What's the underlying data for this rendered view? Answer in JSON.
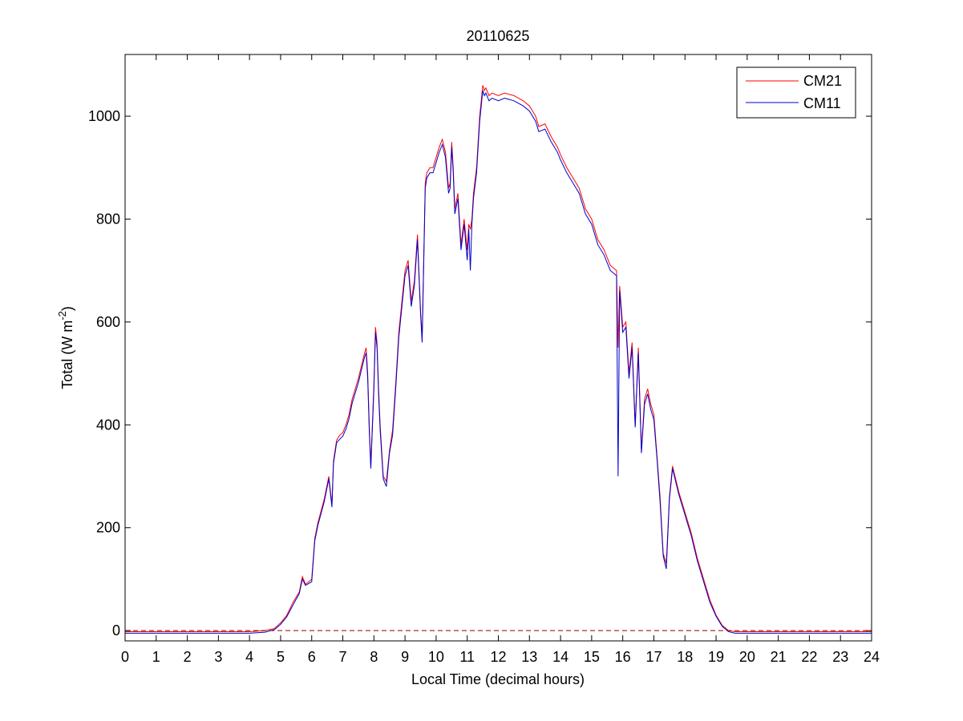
{
  "chart_data": {
    "type": "line",
    "title": "20110625",
    "xlabel": "Local Time (decimal hours)",
    "ylabel": {
      "prefix": "Total (W m",
      "superscript": "-2",
      "suffix": ")"
    },
    "xlim": [
      0,
      24
    ],
    "ylim": [
      -20,
      1120
    ],
    "xticks": [
      0,
      1,
      2,
      3,
      4,
      5,
      6,
      7,
      8,
      9,
      10,
      11,
      12,
      13,
      14,
      15,
      16,
      17,
      18,
      19,
      20,
      21,
      22,
      23,
      24
    ],
    "yticks": [
      0,
      200,
      400,
      600,
      800,
      1000
    ],
    "grid": false,
    "legend_position": "top-right",
    "reference_line": {
      "y": 0,
      "style": "dashed",
      "color": "#8b0000"
    },
    "series": [
      {
        "name": "CM21",
        "color": "#ff0000",
        "x": [
          0,
          1,
          2,
          3,
          4,
          4.5,
          4.8,
          5.0,
          5.2,
          5.4,
          5.6,
          5.7,
          5.8,
          6.0,
          6.1,
          6.2,
          6.4,
          6.55,
          6.65,
          6.7,
          6.8,
          6.9,
          7.0,
          7.1,
          7.2,
          7.3,
          7.5,
          7.7,
          7.75,
          7.8,
          7.85,
          7.9,
          8.0,
          8.05,
          8.1,
          8.15,
          8.2,
          8.3,
          8.4,
          8.5,
          8.6,
          8.7,
          8.8,
          9.0,
          9.1,
          9.2,
          9.3,
          9.4,
          9.5,
          9.55,
          9.6,
          9.65,
          9.7,
          9.8,
          9.9,
          10.0,
          10.1,
          10.2,
          10.3,
          10.4,
          10.45,
          10.5,
          10.55,
          10.6,
          10.7,
          10.8,
          10.9,
          11.0,
          11.05,
          11.1,
          11.15,
          11.2,
          11.3,
          11.4,
          11.5,
          11.55,
          11.6,
          11.7,
          11.8,
          12.0,
          12.2,
          12.5,
          12.8,
          13.0,
          13.2,
          13.3,
          13.5,
          13.7,
          13.9,
          14.0,
          14.2,
          14.4,
          14.6,
          14.8,
          15.0,
          15.2,
          15.4,
          15.6,
          15.8,
          15.85,
          15.9,
          16.0,
          16.1,
          16.2,
          16.3,
          16.4,
          16.5,
          16.6,
          16.7,
          16.8,
          16.9,
          17.0,
          17.1,
          17.2,
          17.3,
          17.4,
          17.5,
          17.6,
          17.8,
          18.0,
          18.2,
          18.4,
          18.6,
          18.8,
          19.0,
          19.2,
          19.4,
          19.6,
          19.8,
          20.0,
          21,
          22,
          23,
          24
        ],
        "y": [
          -2,
          -2,
          -2,
          -2,
          -2,
          0,
          4,
          15,
          30,
          55,
          75,
          105,
          90,
          100,
          180,
          210,
          255,
          300,
          245,
          330,
          370,
          380,
          385,
          400,
          420,
          450,
          490,
          540,
          550,
          500,
          400,
          320,
          480,
          590,
          560,
          470,
          400,
          300,
          290,
          350,
          390,
          480,
          580,
          700,
          720,
          640,
          680,
          770,
          620,
          570,
          720,
          870,
          890,
          900,
          900,
          920,
          940,
          955,
          930,
          860,
          870,
          950,
          900,
          820,
          850,
          750,
          800,
          740,
          790,
          780,
          800,
          850,
          900,
          1000,
          1060,
          1050,
          1055,
          1040,
          1045,
          1040,
          1045,
          1040,
          1030,
          1020,
          1000,
          980,
          985,
          960,
          940,
          925,
          900,
          880,
          860,
          820,
          800,
          760,
          740,
          710,
          700,
          550,
          670,
          590,
          600,
          500,
          560,
          400,
          550,
          350,
          450,
          470,
          440,
          420,
          340,
          260,
          150,
          130,
          260,
          320,
          270,
          230,
          190,
          140,
          100,
          60,
          30,
          10,
          0,
          -2,
          -2,
          -2,
          -2,
          -2,
          -2,
          -2
        ]
      },
      {
        "name": "CM11",
        "color": "#0000cc",
        "x": [
          0,
          1,
          2,
          3,
          4,
          4.5,
          4.8,
          5.0,
          5.2,
          5.4,
          5.6,
          5.7,
          5.8,
          6.0,
          6.1,
          6.2,
          6.4,
          6.55,
          6.65,
          6.7,
          6.8,
          6.9,
          7.0,
          7.1,
          7.2,
          7.3,
          7.5,
          7.7,
          7.75,
          7.8,
          7.85,
          7.9,
          8.0,
          8.05,
          8.1,
          8.15,
          8.2,
          8.3,
          8.4,
          8.5,
          8.6,
          8.7,
          8.8,
          9.0,
          9.1,
          9.2,
          9.3,
          9.4,
          9.5,
          9.55,
          9.6,
          9.65,
          9.7,
          9.8,
          9.9,
          10.0,
          10.1,
          10.2,
          10.3,
          10.4,
          10.45,
          10.5,
          10.55,
          10.6,
          10.7,
          10.8,
          10.9,
          11.0,
          11.05,
          11.1,
          11.15,
          11.2,
          11.3,
          11.4,
          11.5,
          11.55,
          11.6,
          11.7,
          11.8,
          12.0,
          12.2,
          12.5,
          12.8,
          13.0,
          13.2,
          13.3,
          13.5,
          13.7,
          13.9,
          14.0,
          14.2,
          14.4,
          14.6,
          14.8,
          15.0,
          15.2,
          15.4,
          15.6,
          15.8,
          15.85,
          15.9,
          16.0,
          16.1,
          16.2,
          16.3,
          16.4,
          16.5,
          16.6,
          16.7,
          16.8,
          16.9,
          17.0,
          17.1,
          17.2,
          17.3,
          17.4,
          17.5,
          17.6,
          17.8,
          18.0,
          18.2,
          18.4,
          18.6,
          18.8,
          19.0,
          19.2,
          19.4,
          19.6,
          19.8,
          20.0,
          21,
          22,
          23,
          24
        ],
        "y": [
          -5,
          -5,
          -5,
          -5,
          -5,
          -3,
          2,
          12,
          27,
          50,
          72,
          100,
          88,
          95,
          175,
          205,
          250,
          295,
          240,
          325,
          365,
          372,
          378,
          392,
          412,
          442,
          482,
          532,
          540,
          490,
          390,
          315,
          470,
          580,
          550,
          460,
          390,
          295,
          280,
          345,
          380,
          470,
          570,
          690,
          710,
          630,
          670,
          760,
          615,
          560,
          710,
          860,
          880,
          890,
          890,
          910,
          930,
          945,
          920,
          850,
          860,
          940,
          890,
          810,
          840,
          740,
          790,
          720,
          780,
          700,
          790,
          840,
          890,
          990,
          1050,
          1040,
          1045,
          1030,
          1035,
          1030,
          1035,
          1030,
          1020,
          1010,
          990,
          970,
          975,
          950,
          930,
          915,
          890,
          870,
          850,
          810,
          790,
          750,
          730,
          700,
          690,
          300,
          660,
          580,
          590,
          490,
          550,
          395,
          540,
          345,
          440,
          460,
          430,
          410,
          335,
          250,
          145,
          120,
          255,
          315,
          265,
          225,
          185,
          135,
          95,
          55,
          28,
          8,
          -2,
          -5,
          -5,
          -5,
          -5,
          -5,
          -5,
          -5
        ]
      }
    ]
  }
}
